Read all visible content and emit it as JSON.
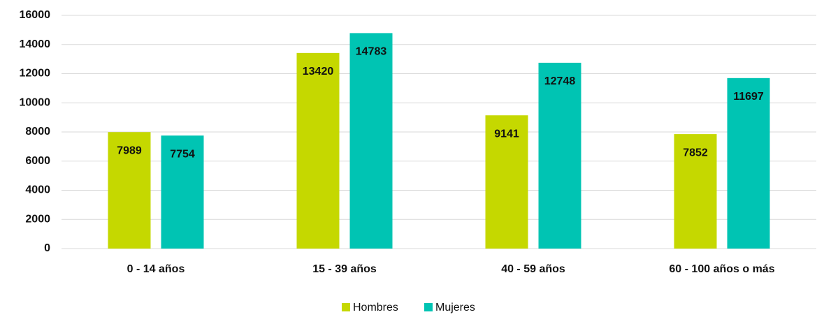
{
  "chart_data": {
    "type": "bar",
    "categories": [
      "0 - 14 años",
      "15 - 39 años",
      "40 - 59 años",
      "60 - 100 años o más"
    ],
    "series": [
      {
        "name": "Hombres",
        "color": "#c5d800",
        "values": [
          7989,
          13420,
          9141,
          7852
        ]
      },
      {
        "name": "Mujeres",
        "color": "#00c4b3",
        "values": [
          7754,
          14783,
          12748,
          11697
        ]
      }
    ],
    "ylim": [
      0,
      16000
    ],
    "yticks": [
      0,
      2000,
      4000,
      6000,
      8000,
      10000,
      12000,
      14000,
      16000
    ],
    "grid": true,
    "legend": "bottom"
  }
}
